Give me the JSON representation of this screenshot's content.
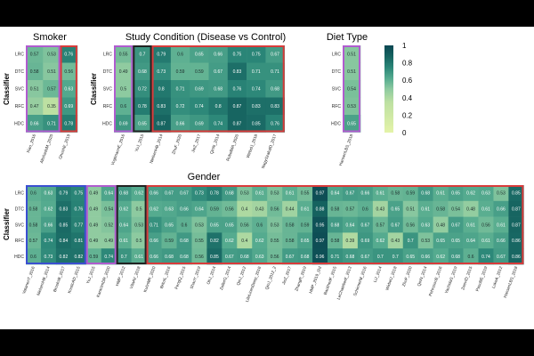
{
  "chart_data": [
    {
      "type": "heatmap",
      "title": "Smoker",
      "ylabel": "Classifier",
      "rows": [
        "LRC",
        "DTC",
        "SVC",
        "RFC",
        "HDC"
      ],
      "columns": [
        "Xiao_2016",
        "AltchadsM_2020",
        "GhoshE_2019"
      ],
      "values": [
        [
          0.57,
          0.53,
          0.76
        ],
        [
          0.58,
          0.51,
          0.56
        ],
        [
          0.51,
          0.57,
          0.63
        ],
        [
          0.47,
          0.35,
          0.69
        ],
        [
          0.66,
          0.71,
          0.78
        ]
      ]
    },
    {
      "type": "heatmap",
      "title": "Study Condition (Disease vs Control)",
      "ylabel": "Classifier",
      "rows": [
        "LRC",
        "DTC",
        "SVC",
        "RFC",
        "HDC"
      ],
      "columns": [
        "VogtmannE_2016",
        "YuJ_2015",
        "NielsenHB_2014",
        "ZhuF_2020",
        "JieZ_2017",
        "QinN_2014",
        "RubelMA_2020",
        "WirbelJ_2018",
        "NagySzakalD_2017"
      ],
      "values": [
        [
          0.55,
          0.7,
          0.79,
          0.6,
          0.65,
          0.66,
          0.75,
          0.75,
          0.67
        ],
        [
          0.49,
          0.68,
          0.73,
          0.59,
          0.59,
          0.67,
          0.83,
          0.71,
          0.71
        ],
        [
          0.5,
          0.72,
          0.8,
          0.71,
          0.69,
          0.68,
          0.76,
          0.74,
          0.68
        ],
        [
          0.6,
          0.78,
          0.83,
          0.72,
          0.74,
          0.8,
          0.87,
          0.83,
          0.83
        ],
        [
          0.69,
          0.65,
          0.87,
          0.66,
          0.69,
          0.74,
          0.87,
          0.85,
          0.76
        ]
      ]
    },
    {
      "type": "heatmap",
      "title": "Diet Type",
      "rows": [
        "LRC",
        "DTC",
        "SVC",
        "RFC",
        "HDC"
      ],
      "columns": [
        "HansenLBS_2018"
      ],
      "values": [
        [
          0.51
        ],
        [
          0.51
        ],
        [
          0.54
        ],
        [
          0.53
        ],
        [
          0.65
        ]
      ]
    },
    {
      "type": "heatmap",
      "title": "Gender",
      "ylabel": "Classifier",
      "rows": [
        "LRC",
        "DTC",
        "SVC",
        "RFC",
        "HDC"
      ],
      "columns": [
        "VatanenT_2016",
        "NielsenHB_2014",
        "BrooksB_2017",
        "KosticAD_2015",
        "YuJ_2015",
        "KaranimDR_2020",
        "HMP_2012",
        "VilaAV_2018",
        "KuhnMK_2020",
        "BritoIL_2016",
        "FengQ_2015",
        "ShaoY_2019",
        "OhJ_2014",
        "ZellerG_2014",
        "QinJ_2012",
        "LifeLinesDeep_2016",
        "QinJ_2012_2",
        "JieZ_2017",
        "ZhangR_2019",
        "HMP_2019_t2d",
        "BackhedF_2015",
        "LeChatelierE_2013",
        "SchirmerM_2016",
        "LiJ_2014",
        "WirbelJ_2018",
        "ZhuF_2020",
        "QinN_2014",
        "PehrssonE_2016",
        "YachidaS_2019",
        "ZeevID_2015",
        "PasolliE_2019",
        "LokeA_2012",
        "HansenLBS_2018"
      ],
      "values": [
        [
          0.6,
          0.63,
          0.79,
          0.75,
          0.49,
          0.64,
          0.68,
          0.62,
          0.66,
          0.67,
          0.67,
          0.73,
          0.78,
          0.68,
          0.53,
          0.61,
          0.53,
          0.61,
          0.55,
          0.97,
          0.64,
          0.67,
          0.66,
          0.61,
          0.58,
          0.59,
          0.68,
          0.61,
          0.65,
          0.62,
          0.63,
          0.53,
          0.85
        ],
        [
          0.58,
          0.62,
          0.83,
          0.76,
          0.49,
          0.54,
          0.62,
          0.5,
          0.62,
          0.63,
          0.66,
          0.64,
          0.59,
          0.56,
          0.4,
          0.43,
          0.56,
          0.44,
          0.61,
          0.88,
          0.58,
          0.57,
          0.6,
          0.43,
          0.65,
          0.51,
          0.61,
          0.58,
          0.54,
          0.48,
          0.61,
          0.66,
          0.87
        ],
        [
          0.58,
          0.66,
          0.85,
          0.77,
          0.49,
          0.52,
          0.64,
          0.53,
          0.71,
          0.65,
          0.6,
          0.53,
          0.65,
          0.65,
          0.56,
          0.6,
          0.53,
          0.58,
          0.59,
          0.95,
          0.68,
          0.64,
          0.67,
          0.57,
          0.67,
          0.56,
          0.63,
          0.48,
          0.67,
          0.61,
          0.56,
          0.61,
          0.87
        ],
        [
          0.57,
          0.74,
          0.84,
          0.81,
          0.49,
          0.49,
          0.61,
          0.5,
          0.66,
          0.59,
          0.68,
          0.55,
          0.82,
          0.62,
          0.4,
          0.62,
          0.55,
          0.58,
          0.65,
          0.97,
          0.58,
          0.39,
          0.69,
          0.62,
          0.43,
          0.7,
          0.53,
          0.65,
          0.65,
          0.64,
          0.61,
          0.66,
          0.86
        ],
        [
          0.6,
          0.73,
          0.82,
          0.82,
          0.59,
          0.74,
          0.7,
          0.61,
          0.66,
          0.68,
          0.68,
          0.56,
          0.85,
          0.67,
          0.68,
          0.63,
          0.56,
          0.67,
          0.68,
          0.96,
          0.71,
          0.68,
          0.67,
          0.7,
          0.7,
          0.65,
          0.66,
          0.62,
          0.68,
          0.6,
          0.74,
          0.67,
          0.86
        ]
      ]
    }
  ],
  "colorbar": {
    "ticks": [
      "1",
      "0.8",
      "0.6",
      "0.4",
      "0.2",
      "0"
    ],
    "low_color": "#e4f3a8",
    "high_color": "#0b4752"
  }
}
